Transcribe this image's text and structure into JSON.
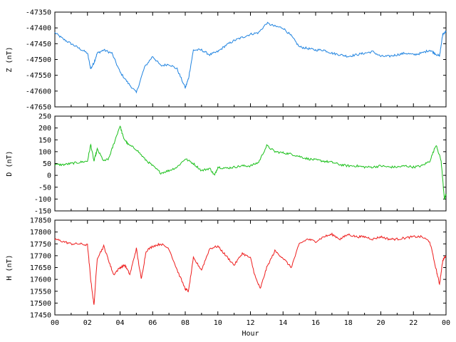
{
  "chart_data": [
    {
      "type": "line",
      "ylabel": "Z (nT)",
      "ylim": [
        -47650,
        -47350
      ],
      "yticks": [
        -47350,
        -47400,
        -47450,
        -47500,
        -47550,
        -47600,
        -47650
      ],
      "color": "#1f83e0",
      "x": [
        0,
        0.5,
        1,
        1.5,
        2,
        2.2,
        2.4,
        2.6,
        3,
        3.5,
        4,
        4.5,
        5,
        5.5,
        6,
        6.5,
        7,
        7.5,
        8,
        8.2,
        8.5,
        9,
        9.5,
        10,
        10.5,
        11,
        11.5,
        12,
        12.5,
        13,
        13.5,
        14,
        14.5,
        15,
        15.5,
        16,
        16.5,
        17,
        17.5,
        18,
        18.5,
        19,
        19.5,
        20,
        20.5,
        21,
        21.5,
        22,
        22.5,
        23,
        23.3,
        23.6,
        23.8,
        24
      ],
      "values": [
        -47415,
        -47435,
        -47450,
        -47465,
        -47480,
        -47530,
        -47510,
        -47480,
        -47470,
        -47480,
        -47540,
        -47575,
        -47605,
        -47525,
        -47490,
        -47520,
        -47515,
        -47530,
        -47590,
        -47560,
        -47470,
        -47470,
        -47485,
        -47475,
        -47455,
        -47440,
        -47430,
        -47420,
        -47415,
        -47385,
        -47395,
        -47400,
        -47425,
        -47460,
        -47465,
        -47470,
        -47470,
        -47480,
        -47485,
        -47490,
        -47485,
        -47480,
        -47475,
        -47490,
        -47490,
        -47485,
        -47480,
        -47485,
        -47480,
        -47470,
        -47480,
        -47490,
        -47420,
        -47410
      ]
    },
    {
      "type": "line",
      "ylabel": "D (nT)",
      "ylim": [
        -150,
        250
      ],
      "yticks": [
        250,
        200,
        150,
        100,
        50,
        0,
        -50,
        -100,
        -150
      ],
      "color": "#1bc01b",
      "x": [
        0,
        0.5,
        1,
        1.5,
        2,
        2.2,
        2.4,
        2.6,
        3,
        3.3,
        3.6,
        4,
        4.2,
        4.5,
        5,
        5.5,
        6,
        6.5,
        7,
        7.5,
        8,
        8.5,
        9,
        9.5,
        9.8,
        10,
        10.5,
        11,
        11.5,
        12,
        12.5,
        13,
        13.5,
        14,
        14.5,
        15,
        15.5,
        16,
        16.5,
        17,
        17.5,
        18,
        18.5,
        19,
        19.5,
        20,
        20.5,
        21,
        21.5,
        22,
        22.5,
        23,
        23.4,
        23.7,
        23.9,
        24
      ],
      "values": [
        45,
        45,
        50,
        55,
        60,
        130,
        60,
        110,
        60,
        70,
        130,
        210,
        160,
        130,
        110,
        70,
        40,
        10,
        20,
        35,
        70,
        50,
        20,
        30,
        0,
        35,
        30,
        35,
        40,
        40,
        55,
        125,
        100,
        95,
        90,
        80,
        70,
        65,
        60,
        55,
        45,
        40,
        40,
        35,
        35,
        40,
        35,
        35,
        40,
        35,
        40,
        60,
        130,
        60,
        -100,
        -80
      ]
    },
    {
      "type": "line",
      "ylabel": "H (nT)",
      "xlabel": "Hour",
      "ylim": [
        17450,
        17850
      ],
      "yticks": [
        17850,
        17800,
        17750,
        17700,
        17650,
        17600,
        17550,
        17500,
        17450
      ],
      "xticks": [
        "00",
        "02",
        "04",
        "06",
        "08",
        "10",
        "12",
        "14",
        "16",
        "18",
        "20",
        "22",
        "00"
      ],
      "xlim": [
        0,
        24
      ],
      "color": "#ee1c1c",
      "x": [
        0,
        0.5,
        1,
        1.5,
        2,
        2.2,
        2.4,
        2.6,
        3,
        3.3,
        3.6,
        4,
        4.3,
        4.6,
        5,
        5.3,
        5.6,
        6,
        6.5,
        7,
        7.5,
        8,
        8.2,
        8.5,
        9,
        9.5,
        10,
        10.5,
        11,
        11.5,
        12,
        12.3,
        12.6,
        13,
        13.5,
        14,
        14.5,
        15,
        15.5,
        16,
        16.5,
        17,
        17.5,
        18,
        18.5,
        19,
        19.5,
        20,
        20.5,
        21,
        21.5,
        22,
        22.5,
        23,
        23.4,
        23.6,
        23.8,
        24
      ],
      "values": [
        17770,
        17760,
        17750,
        17750,
        17745,
        17600,
        17490,
        17690,
        17740,
        17680,
        17620,
        17650,
        17660,
        17620,
        17730,
        17600,
        17720,
        17740,
        17750,
        17730,
        17640,
        17560,
        17550,
        17690,
        17640,
        17730,
        17740,
        17700,
        17660,
        17710,
        17690,
        17610,
        17560,
        17650,
        17720,
        17690,
        17650,
        17750,
        17770,
        17760,
        17780,
        17790,
        17770,
        17790,
        17780,
        17780,
        17770,
        17780,
        17770,
        17770,
        17775,
        17780,
        17780,
        17760,
        17640,
        17580,
        17680,
        17700
      ]
    }
  ]
}
